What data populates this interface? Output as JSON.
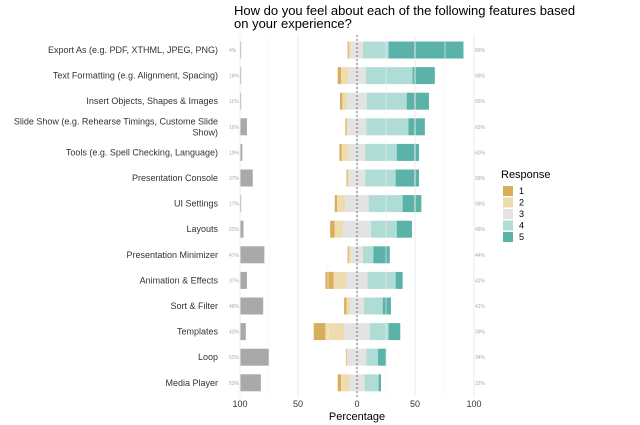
{
  "chart_data": {
    "type": "bar",
    "title": "How do you feel about each of the following features based on your experience?",
    "title_lines": [
      "How do you feel about each of the following features based",
      "on your experience?"
    ],
    "xlabel": "Percentage",
    "x_ticks": [
      "100",
      "50",
      "0",
      "50",
      "100"
    ],
    "xlim": [
      -100,
      100
    ],
    "legend": {
      "title": "Response",
      "position": "right",
      "entries": [
        {
          "label": "1",
          "color": "#d8ae5c"
        },
        {
          "label": "2",
          "color": "#efdcae"
        },
        {
          "label": "3",
          "color": "#e3e3e3"
        },
        {
          "label": "4",
          "color": "#b0dcd6"
        },
        {
          "label": "5",
          "color": "#5ab2a8"
        }
      ]
    },
    "categories": [
      {
        "lines": [
          "Export As (e.g. PDF, XTHML, JPEG, PNG)"
        ],
        "left_pct": "4%",
        "right_pct": "86%",
        "values": [
          1,
          2,
          10,
          22,
          64
        ],
        "left_bar": 1
      },
      {
        "lines": [
          "Text Formatting (e.g. Alignment, Spacing)"
        ],
        "left_pct": "16%",
        "right_pct": "68%",
        "values": [
          3,
          6,
          15,
          40,
          19
        ],
        "left_bar": 1
      },
      {
        "lines": [
          "Insert Objects, Shapes & Images"
        ],
        "left_pct": "11%",
        "right_pct": "65%",
        "values": [
          2,
          4,
          17,
          34,
          19
        ],
        "left_bar": 1
      },
      {
        "lines": [
          "Slide Show (e.g. Rehearse Timings, Custome Slide",
          "Show)"
        ],
        "left_pct": "16%",
        "right_pct": "65%",
        "values": [
          1,
          1,
          16,
          36,
          14
        ],
        "left_bar": 6
      },
      {
        "lines": [
          "Tools (e.g. Spell Checking, Language)"
        ],
        "left_pct": "19%",
        "right_pct": "60%",
        "values": [
          2,
          6,
          14,
          27,
          19
        ],
        "left_bar": 2
      },
      {
        "lines": [
          "Presentation Console"
        ],
        "left_pct": "37%",
        "right_pct": "58%",
        "values": [
          1,
          1,
          14,
          26,
          20
        ],
        "left_bar": 11
      },
      {
        "lines": [
          "UI Settings"
        ],
        "left_pct": "17%",
        "right_pct": "58%",
        "values": [
          2,
          7,
          20,
          29,
          16
        ],
        "left_bar": 1
      },
      {
        "lines": [
          "Layouts"
        ],
        "left_pct": "22%",
        "right_pct": "48%",
        "values": [
          4,
          7,
          24,
          22,
          13
        ],
        "left_bar": 3
      },
      {
        "lines": [
          "Presentation Minimizer"
        ],
        "left_pct": "47%",
        "right_pct": "44%",
        "values": [
          1,
          2,
          10,
          9,
          14
        ],
        "left_bar": 21
      },
      {
        "lines": [
          "Animation & Effects"
        ],
        "left_pct": "37%",
        "right_pct": "42%",
        "values": [
          7,
          11,
          18,
          24,
          6
        ],
        "left_bar": 6
      },
      {
        "lines": [
          "Sort & Filter"
        ],
        "left_pct": "48%",
        "right_pct": "41%",
        "values": [
          2,
          3,
          12,
          16,
          7
        ],
        "left_bar": 20
      },
      {
        "lines": [
          "Templates"
        ],
        "left_pct": "43%",
        "right_pct": "39%",
        "values": [
          10,
          16,
          22,
          16,
          10
        ],
        "left_bar": 5
      },
      {
        "lines": [
          "Loop"
        ],
        "left_pct": "52%",
        "right_pct": "34%",
        "values": [
          0.5,
          1,
          16,
          10,
          7
        ],
        "left_bar": 25
      },
      {
        "lines": [
          "Media Player"
        ],
        "left_pct": "53%",
        "right_pct": "32%",
        "values": [
          3,
          7,
          13,
          12,
          2
        ],
        "left_bar": 18
      }
    ]
  }
}
